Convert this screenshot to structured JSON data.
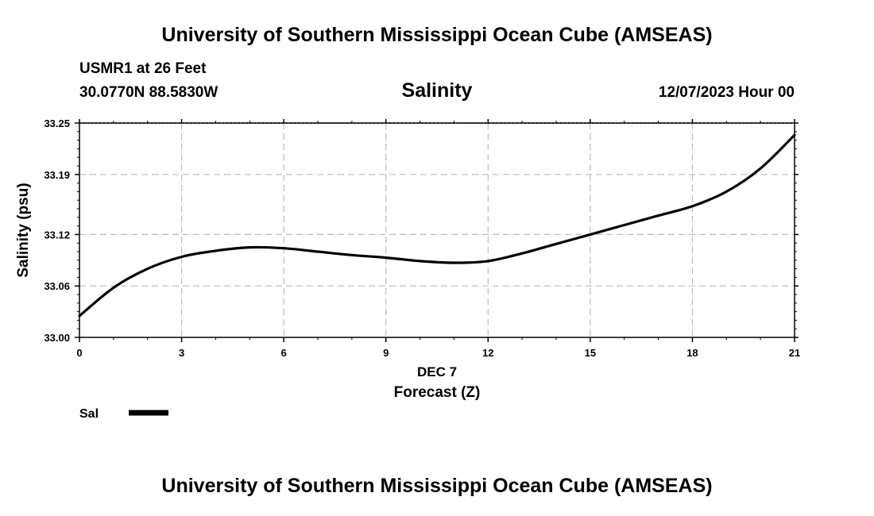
{
  "header": {
    "title": "University of Southern Mississippi Ocean Cube (AMSEAS)",
    "station": "USMR1 at 26 Feet",
    "coords": "30.0770N  88.5830W",
    "timestamp": "12/07/2023 Hour 00"
  },
  "footer": {
    "title": "University of Southern Mississippi Ocean Cube (AMSEAS)"
  },
  "chart_data": {
    "type": "line",
    "title": "Salinity",
    "xlabel": "Forecast (Z)",
    "xlabel_date": "DEC 7",
    "ylabel": "Salinity (psu)",
    "xlim": [
      0,
      21
    ],
    "ylim": [
      33.0,
      33.25
    ],
    "xticks": [
      0,
      3,
      6,
      9,
      12,
      15,
      18,
      21
    ],
    "yticks": [
      33.0,
      33.06,
      33.12,
      33.19,
      33.25
    ],
    "ytick_labels": [
      "33.00",
      "33.06",
      "33.12",
      "33.19",
      "33.25"
    ],
    "grid": true,
    "legend_position": "bottom-left",
    "series": [
      {
        "name": "Sal",
        "color": "#000000",
        "x": [
          0,
          1,
          2,
          3,
          4,
          5,
          6,
          7,
          8,
          9,
          10,
          11,
          12,
          13,
          14,
          15,
          16,
          17,
          18,
          19,
          20,
          21
        ],
        "values": [
          33.025,
          33.058,
          33.08,
          33.094,
          33.101,
          33.105,
          33.104,
          33.1,
          33.096,
          33.093,
          33.089,
          33.087,
          33.089,
          33.098,
          33.109,
          33.12,
          33.131,
          33.142,
          33.153,
          33.17,
          33.197,
          33.236
        ]
      }
    ]
  }
}
